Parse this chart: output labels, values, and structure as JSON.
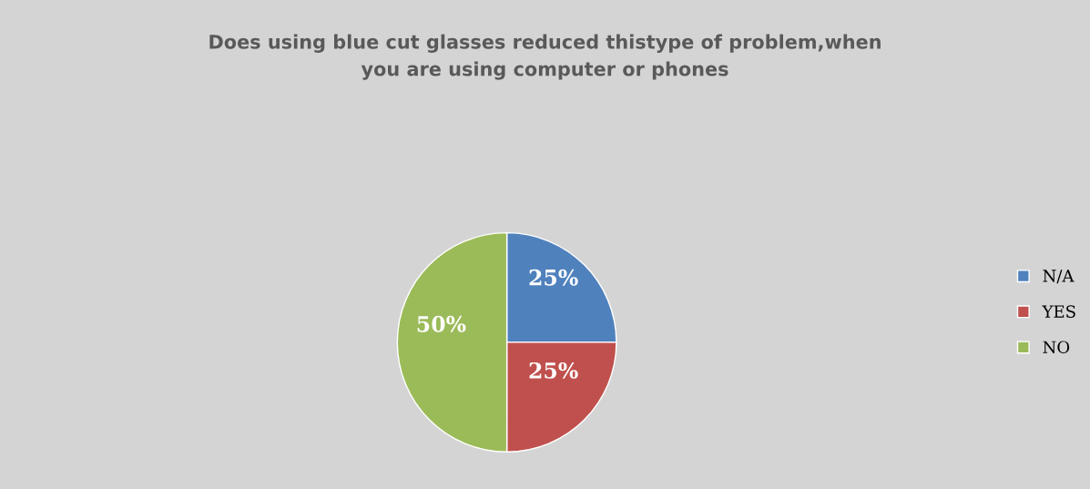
{
  "chart_data": {
    "type": "pie",
    "title": "Does using blue cut glasses reduced thistype of problem,when\nyou are using computer or phones",
    "categories": [
      "N/A",
      "YES",
      "NO"
    ],
    "values": [
      25,
      25,
      50
    ],
    "colors": [
      "#4f81bd",
      "#c0504d",
      "#9bbb59"
    ],
    "value_labels": [
      "25%",
      "25%",
      "50%"
    ],
    "legend": "right"
  }
}
